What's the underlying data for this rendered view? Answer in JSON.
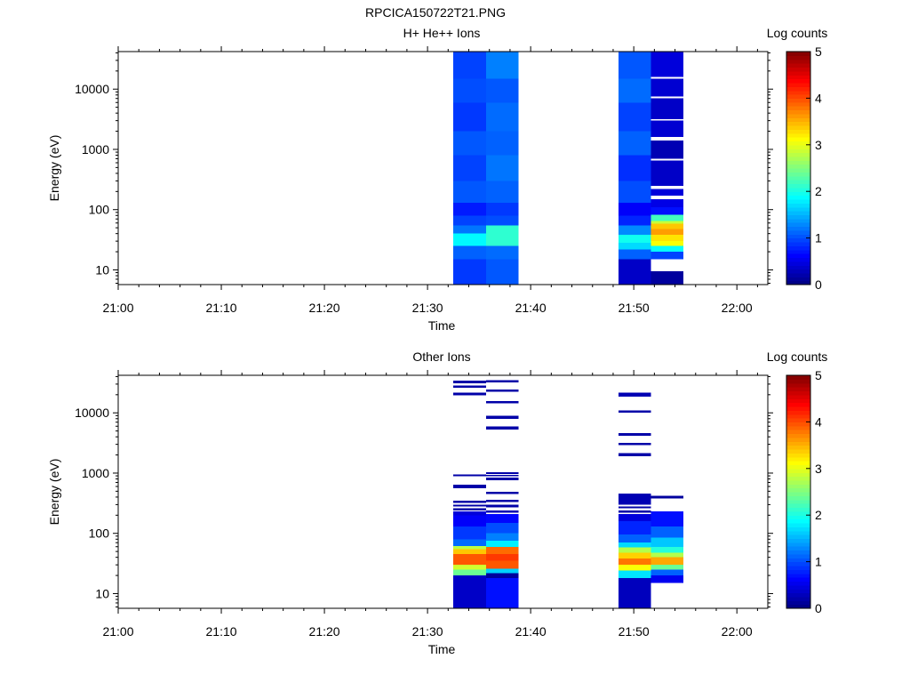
{
  "figure": {
    "title": "RPCICA150722T21.PNG"
  },
  "chart_data": [
    {
      "type": "heatmap",
      "title": "H+ He++ Ions",
      "xlabel": "Time",
      "ylabel": "Energy (eV)",
      "yscale": "log",
      "xlim": [
        "21:00",
        "22:03"
      ],
      "ylim": [
        5.7,
        42000
      ],
      "x_ticks": [
        "21:00",
        "21:10",
        "21:20",
        "21:30",
        "21:40",
        "21:50",
        "22:00"
      ],
      "y_ticks": [
        10,
        100,
        1000,
        10000
      ],
      "y_tick_labels": [
        "10",
        "100",
        "1000",
        "10000"
      ],
      "colorbar": {
        "label": "Log counts",
        "min": 0,
        "max": 5,
        "ticks": [
          "0",
          "1",
          "2",
          "3",
          "4",
          "5"
        ]
      },
      "columns": [
        {
          "start": "21:32:30",
          "end": "21:35:40",
          "cells": [
            [
              5.7,
              15,
              0.9
            ],
            [
              15,
              25,
              1.1
            ],
            [
              25,
              40,
              1.85
            ],
            [
              40,
              55,
              1.2
            ],
            [
              55,
              80,
              0.95
            ],
            [
              80,
              130,
              0.75
            ],
            [
              130,
              300,
              1.05
            ],
            [
              300,
              800,
              0.95
            ],
            [
              800,
              2000,
              1.05
            ],
            [
              2000,
              6000,
              0.9
            ],
            [
              6000,
              15000,
              1.0
            ],
            [
              15000,
              42000,
              0.95
            ]
          ]
        },
        {
          "start": "21:35:40",
          "end": "21:38:50",
          "cells": [
            [
              5.7,
              15,
              1.05
            ],
            [
              15,
              25,
              1.15
            ],
            [
              25,
              55,
              2.1
            ],
            [
              55,
              80,
              1.0
            ],
            [
              80,
              130,
              0.9
            ],
            [
              130,
              300,
              1.1
            ],
            [
              300,
              800,
              1.2
            ],
            [
              800,
              2000,
              1.1
            ],
            [
              2000,
              6000,
              1.15
            ],
            [
              6000,
              15000,
              1.05
            ],
            [
              15000,
              42000,
              1.25
            ]
          ]
        },
        {
          "start": "21:48:30",
          "end": "21:51:40",
          "cells": [
            [
              5.7,
              15,
              0.35
            ],
            [
              15,
              22,
              1.1
            ],
            [
              22,
              28,
              1.7
            ],
            [
              28,
              38,
              1.95
            ],
            [
              38,
              55,
              1.3
            ],
            [
              55,
              80,
              0.8
            ],
            [
              80,
              130,
              0.6
            ],
            [
              130,
              300,
              1.0
            ],
            [
              300,
              800,
              0.85
            ],
            [
              800,
              2000,
              1.1
            ],
            [
              2000,
              6000,
              0.95
            ],
            [
              6000,
              15000,
              1.15
            ],
            [
              15000,
              42000,
              1.05
            ]
          ]
        },
        {
          "start": "21:51:40",
          "end": "21:54:50",
          "cells": [
            [
              5.7,
              9.5,
              0.15
            ],
            [
              15,
              20,
              0.95
            ],
            [
              20,
              25,
              1.9
            ],
            [
              25,
              30,
              3.1
            ],
            [
              30,
              38,
              3.25
            ],
            [
              38,
              48,
              3.6
            ],
            [
              48,
              58,
              3.4
            ],
            [
              58,
              65,
              2.85
            ],
            [
              65,
              82,
              2.2
            ],
            [
              82,
              110,
              0.7
            ],
            [
              110,
              150,
              0.5
            ],
            [
              170,
              220,
              0.45
            ],
            [
              250,
              650,
              0.35
            ],
            [
              700,
              1400,
              0.25
            ],
            [
              1600,
              3000,
              0.4
            ],
            [
              3200,
              7000,
              0.35
            ],
            [
              7500,
              15000,
              0.4
            ],
            [
              16000,
              42000,
              0.45
            ]
          ]
        }
      ]
    },
    {
      "type": "heatmap",
      "title": "Other Ions",
      "xlabel": "Time",
      "ylabel": "Energy (eV)",
      "yscale": "log",
      "xlim": [
        "21:00",
        "22:03"
      ],
      "ylim": [
        5.7,
        42000
      ],
      "x_ticks": [
        "21:00",
        "21:10",
        "21:20",
        "21:30",
        "21:40",
        "21:50",
        "22:00"
      ],
      "y_ticks": [
        10,
        100,
        1000,
        10000
      ],
      "y_tick_labels": [
        "10",
        "100",
        "1000",
        "10000"
      ],
      "colorbar": {
        "label": "Log counts",
        "min": 0,
        "max": 5,
        "ticks": [
          "0",
          "1",
          "2",
          "3",
          "4",
          "5"
        ]
      },
      "columns": [
        {
          "start": "21:32:30",
          "end": "21:35:40",
          "cells": [
            [
              5.7,
              20,
              0.35
            ],
            [
              20,
              25,
              2.4
            ],
            [
              25,
              30,
              2.9
            ],
            [
              30,
              45,
              3.95
            ],
            [
              45,
              55,
              3.4
            ],
            [
              55,
              62,
              2.8
            ],
            [
              62,
              80,
              1.15
            ],
            [
              80,
              130,
              0.9
            ],
            [
              130,
              200,
              0.6
            ],
            [
              200,
              230,
              0.45
            ],
            [
              240,
              260,
              0.2
            ],
            [
              280,
              300,
              0.2
            ],
            [
              320,
              350,
              0.2
            ],
            [
              560,
              640,
              0.2
            ],
            [
              880,
              950,
              0.2
            ],
            [
              19500,
              21500,
              0.2
            ],
            [
              26000,
              28500,
              0.2
            ],
            [
              31000,
              34000,
              0.2
            ]
          ]
        },
        {
          "start": "21:35:40",
          "end": "21:38:50",
          "cells": [
            [
              5.7,
              18,
              0.7
            ],
            [
              18,
              22,
              0.15
            ],
            [
              22,
              26,
              1.65
            ],
            [
              26,
              35,
              3.95
            ],
            [
              35,
              45,
              4.1
            ],
            [
              45,
              60,
              3.85
            ],
            [
              60,
              75,
              1.8
            ],
            [
              75,
              100,
              1.25
            ],
            [
              100,
              150,
              1.0
            ],
            [
              150,
              210,
              0.65
            ],
            [
              220,
              240,
              0.25
            ],
            [
              270,
              300,
              0.2
            ],
            [
              330,
              360,
              0.2
            ],
            [
              450,
              490,
              0.2
            ],
            [
              760,
              850,
              0.2
            ],
            [
              880,
              930,
              0.2
            ],
            [
              960,
              1040,
              0.2
            ],
            [
              5300,
              6000,
              0.2
            ],
            [
              8000,
              8900,
              0.2
            ],
            [
              14500,
              15800,
              0.2
            ],
            [
              22500,
              24500,
              0.2
            ],
            [
              32000,
              35000,
              0.2
            ]
          ]
        },
        {
          "start": "21:48:30",
          "end": "21:51:40",
          "cells": [
            [
              5.7,
              18,
              0.3
            ],
            [
              18,
              24,
              1.75
            ],
            [
              24,
              30,
              3.1
            ],
            [
              30,
              38,
              3.8
            ],
            [
              38,
              48,
              3.35
            ],
            [
              48,
              58,
              2.75
            ],
            [
              58,
              70,
              1.7
            ],
            [
              70,
              95,
              1.1
            ],
            [
              95,
              160,
              0.8
            ],
            [
              160,
              210,
              0.45
            ],
            [
              220,
              240,
              0.2
            ],
            [
              260,
              280,
              0.2
            ],
            [
              300,
              460,
              0.25
            ],
            [
              1900,
              2150,
              0.2
            ],
            [
              2900,
              3200,
              0.2
            ],
            [
              4200,
              4600,
              0.2
            ],
            [
              10000,
              11000,
              0.2
            ],
            [
              18500,
              21500,
              0.25
            ]
          ]
        },
        {
          "start": "21:51:40",
          "end": "21:54:50",
          "cells": [
            [
              15,
              20,
              0.55
            ],
            [
              20,
              25,
              1.1
            ],
            [
              25,
              30,
              2.4
            ],
            [
              30,
              40,
              3.55
            ],
            [
              40,
              48,
              2.75
            ],
            [
              48,
              60,
              2.05
            ],
            [
              60,
              85,
              1.6
            ],
            [
              85,
              130,
              1.1
            ],
            [
              130,
              230,
              0.7
            ],
            [
              380,
              420,
              0.15
            ]
          ]
        }
      ]
    }
  ]
}
